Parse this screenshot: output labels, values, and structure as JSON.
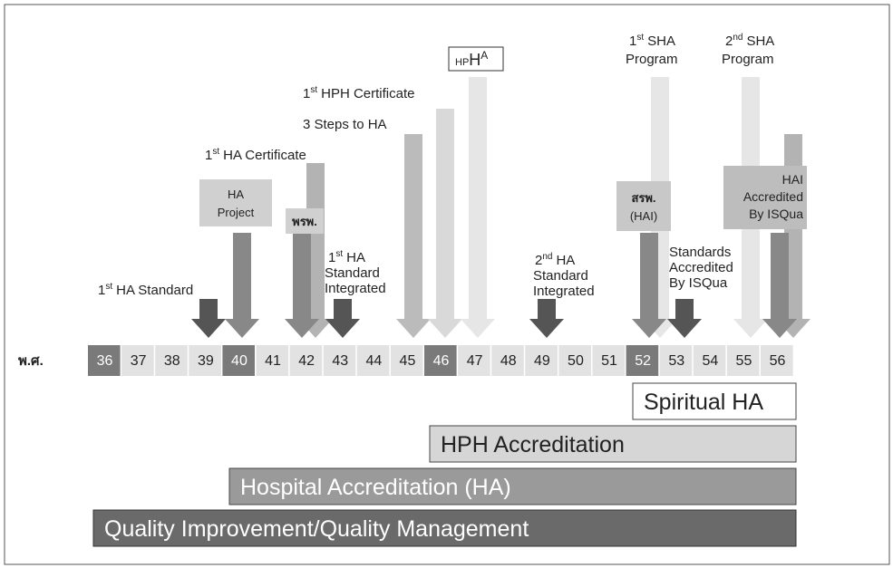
{
  "years": {
    "label": "พ.ศ.",
    "cells": [
      "36",
      "37",
      "38",
      "39",
      "40",
      "41",
      "42",
      "43",
      "44",
      "45",
      "46",
      "47",
      "48",
      "49",
      "50",
      "51",
      "52",
      "53",
      "54",
      "55",
      "56"
    ]
  },
  "bands": [
    "Spiritual HA",
    "HPH Accreditation",
    "Hospital Accreditation (HA)",
    "Quality Improvement/Quality Management"
  ],
  "labels": {
    "ha_standard": {
      "num": "1",
      "sup": "st",
      "text": "HA Standard"
    },
    "ha_certificate": {
      "num": "1",
      "sup": "st",
      "text": "HA Certificate"
    },
    "ha_project": [
      "HA",
      "Project"
    ],
    "prp": "พรพ.",
    "ha_integrated_1": {
      "num": "1",
      "sup": "st",
      "lines": [
        "HA",
        "Standard",
        "Integrated"
      ]
    },
    "steps": "3 Steps to HA",
    "hph_certificate": {
      "num": "1",
      "sup": "st",
      "text": "HPH Certificate"
    },
    "hpha": {
      "sub": "HP",
      "main": "H",
      "sup": "A"
    },
    "ha_integrated_2": {
      "num": "2",
      "sup": "nd",
      "lines": [
        "HA",
        "Standard",
        "Integrated"
      ]
    },
    "sha_1": {
      "num": "1",
      "sup": "st",
      "lines": [
        "SHA",
        "Program"
      ]
    },
    "sha_2": {
      "num": "2",
      "sup": "nd",
      "lines": [
        "SHA",
        "Program"
      ]
    },
    "hai_box": [
      "สรพ.",
      "(HAI)"
    ],
    "standards_isqua": [
      "Standards",
      "Accredited",
      "By ISQua"
    ],
    "hai_isqua": [
      "HAI",
      "Accredited",
      "By ISQua"
    ]
  }
}
